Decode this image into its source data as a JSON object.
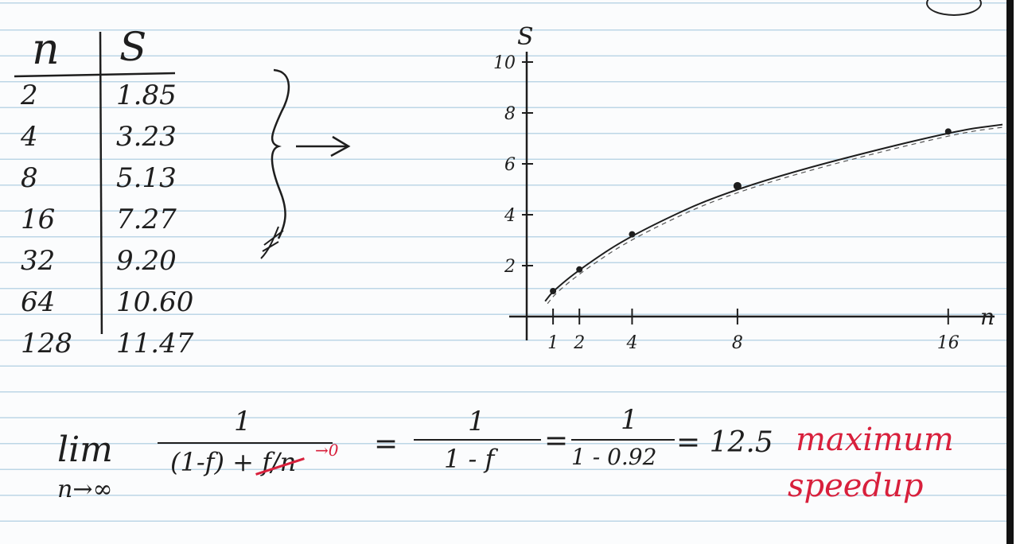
{
  "table": {
    "header": {
      "n": "n",
      "s": "S"
    },
    "rows": [
      {
        "n": "2",
        "s": "1.85"
      },
      {
        "n": "4",
        "s": "3.23"
      },
      {
        "n": "8",
        "s": "5.13"
      },
      {
        "n": "16",
        "s": "7.27"
      },
      {
        "n": "32",
        "s": "9.20"
      },
      {
        "n": "64",
        "s": "10.60"
      },
      {
        "n": "128",
        "s": "11.47"
      }
    ]
  },
  "chart_data": {
    "type": "line",
    "ylabel": "S",
    "xlabel": "n",
    "x_ticks": [
      "1",
      "2",
      "4",
      "8",
      "16"
    ],
    "y_ticks": [
      "2",
      "4",
      "6",
      "8",
      "10"
    ],
    "xlim": [
      0,
      18
    ],
    "ylim": [
      0,
      10
    ],
    "points": [
      {
        "x": 1,
        "y": 1
      },
      {
        "x": 2,
        "y": 1.85
      },
      {
        "x": 4,
        "y": 3.23
      },
      {
        "x": 8,
        "y": 5.13
      },
      {
        "x": 16,
        "y": 7.27
      }
    ]
  },
  "equation": {
    "lim": "lim",
    "sub": "n→∞",
    "num1": "1",
    "den1": "(1-f) + f/n",
    "arrow_zero": "→0",
    "eq": "=",
    "num2": "1",
    "den2": "1 - f",
    "num3": "1",
    "den3": "1 - 0.92",
    "result": "= 12.5"
  },
  "note": {
    "line1": "maximum",
    "line2": "speedup"
  },
  "colors": {
    "ink": "#1e1e1e",
    "red": "#d8203c",
    "rule": "#bcd6e6"
  }
}
